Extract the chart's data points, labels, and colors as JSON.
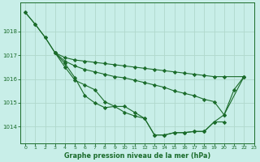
{
  "title": "Graphe pression niveau de la mer (hPa)",
  "bg_color": "#c8eee8",
  "grid_color": "#b0d8cc",
  "line_color": "#1a6b2a",
  "xlim": [
    -0.5,
    23
  ],
  "ylim": [
    1013.3,
    1019.2
  ],
  "yticks": [
    1014,
    1015,
    1016,
    1017,
    1018
  ],
  "xticks": [
    0,
    1,
    2,
    3,
    4,
    5,
    6,
    7,
    8,
    9,
    10,
    11,
    12,
    13,
    14,
    15,
    16,
    17,
    18,
    19,
    20,
    21,
    22,
    23
  ],
  "series1_x": [
    0,
    1,
    2,
    3,
    4,
    5,
    6,
    7,
    8,
    9,
    10,
    11,
    12,
    13,
    14,
    15,
    16,
    17,
    18,
    19,
    20,
    21,
    22
  ],
  "series1_y": [
    1018.8,
    1018.3,
    1017.75,
    1017.1,
    1016.65,
    1016.05,
    1015.3,
    1015.0,
    1014.8,
    1014.85,
    1014.85,
    1014.6,
    1014.35,
    1013.65,
    1013.65,
    1013.75,
    1013.75,
    1013.8,
    1013.8,
    1014.2,
    1014.5,
    1015.55,
    1016.1
  ],
  "series2_x": [
    0,
    1,
    2,
    3,
    4,
    5,
    6,
    7,
    8,
    9,
    10,
    11,
    12,
    13,
    14,
    15,
    16,
    17,
    18,
    19,
    20,
    22
  ],
  "series2_y": [
    1018.8,
    1018.3,
    1017.75,
    1017.1,
    1016.9,
    1016.8,
    1016.75,
    1016.7,
    1016.65,
    1016.6,
    1016.55,
    1016.5,
    1016.45,
    1016.4,
    1016.35,
    1016.3,
    1016.25,
    1016.2,
    1016.15,
    1016.1,
    1016.1,
    1016.1
  ],
  "series3_x": [
    3,
    4,
    5,
    6,
    7,
    8,
    9,
    10,
    11,
    12,
    13,
    14,
    15,
    16,
    17,
    18,
    19,
    20,
    22
  ],
  "series3_y": [
    1017.1,
    1016.75,
    1016.55,
    1016.4,
    1016.3,
    1016.2,
    1016.1,
    1016.05,
    1015.95,
    1015.85,
    1015.75,
    1015.65,
    1015.5,
    1015.4,
    1015.3,
    1015.15,
    1015.05,
    1014.5,
    1016.1
  ],
  "series4_x": [
    3,
    4,
    5,
    6,
    7,
    8,
    9,
    10,
    11,
    12,
    13,
    14,
    15,
    16,
    17,
    18,
    19,
    20
  ],
  "series4_y": [
    1017.1,
    1016.5,
    1015.95,
    1015.75,
    1015.55,
    1015.05,
    1014.85,
    1014.6,
    1014.45,
    1014.35,
    1013.65,
    1013.65,
    1013.75,
    1013.75,
    1013.8,
    1013.8,
    1014.2,
    1014.2
  ]
}
